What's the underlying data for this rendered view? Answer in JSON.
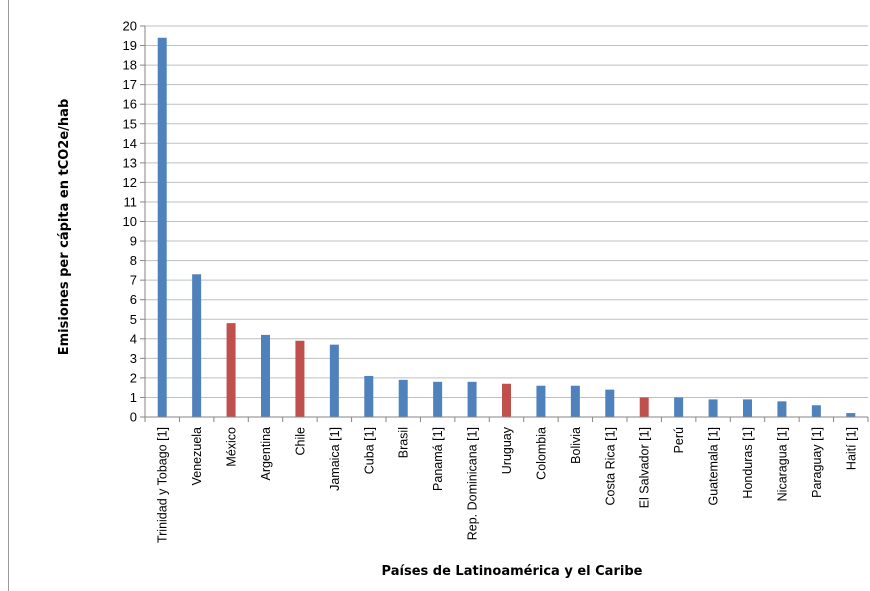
{
  "chart_data": {
    "type": "bar",
    "xlabel": "Países de Latinoamérica y el Caribe",
    "ylabel": "Emisiones per cápita en tCO2e/hab",
    "ylim": [
      0,
      20
    ],
    "yticks": [
      "0",
      "1",
      "2",
      "3",
      "4",
      "5",
      "6",
      "7",
      "8",
      "9",
      "10",
      "11",
      "12",
      "13",
      "14",
      "15",
      "16",
      "17",
      "18",
      "19",
      "20"
    ],
    "grid": true,
    "colors": {
      "default": "#4f81bd",
      "highlight": "#c0504d",
      "grid": "#bfbfbf"
    },
    "categories": [
      "Trinidad y Tobago [1]",
      "Venezuela",
      "México",
      "Argentina",
      "Chile",
      "Jamaica [1]",
      "Cuba [1]",
      "Brasil",
      "Panamá [1]",
      "Rep. Dominicana [1]",
      "Uruguay",
      "Colombia",
      "Bolivia",
      "Costa Rica [1]",
      "El Salvador [1]",
      "Perú",
      "Guatemala [1]",
      "Honduras [1]",
      "Nicaragua [1]",
      "Paraguay [1]",
      "Haití [1]"
    ],
    "values": [
      19.4,
      7.3,
      4.8,
      4.2,
      3.9,
      3.7,
      2.1,
      1.9,
      1.8,
      1.8,
      1.7,
      1.6,
      1.6,
      1.4,
      1.0,
      1.0,
      0.9,
      0.9,
      0.8,
      0.6,
      0.2
    ],
    "highlighted": [
      "México",
      "Chile",
      "Uruguay",
      "El Salvador [1]"
    ]
  }
}
